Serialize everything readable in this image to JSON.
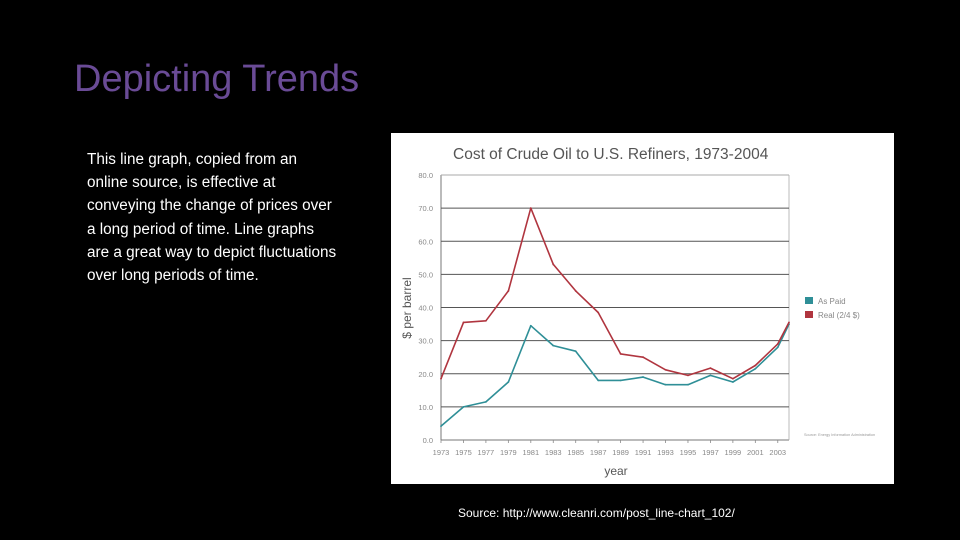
{
  "slide": {
    "title": "Depicting Trends",
    "body": "This line graph, copied from an online source, is effective at conveying the change of prices over a long period of time. Line graphs are a great way to depict fluctuations over long periods of time.",
    "source": "Source: http://www.cleanri.com/post_line-chart_102/",
    "colors": {
      "title": "#6a4b96",
      "background": "#000000",
      "text": "#ffffff"
    }
  },
  "chart_data": {
    "type": "line",
    "title": "Cost of Crude Oil to U.S. Refiners, 1973-2004",
    "xlabel": "year",
    "ylabel": "$ per barrel",
    "ylim": [
      0,
      80
    ],
    "y_ticks": [
      "0.0",
      "10.0",
      "20.0",
      "30.0",
      "40.0",
      "50.0",
      "60.0",
      "70.0",
      "80.0"
    ],
    "x": [
      1973,
      1975,
      1977,
      1979,
      1981,
      1983,
      1985,
      1987,
      1989,
      1991,
      1993,
      1995,
      1997,
      1999,
      2001,
      2003,
      2004
    ],
    "x_tick_labels": [
      "1973",
      "1975",
      "1977",
      "1979",
      "1981",
      "1983",
      "1985",
      "1987",
      "1989",
      "1991",
      "1993",
      "1995",
      "1997",
      "1999",
      "2001",
      "2003"
    ],
    "series": [
      {
        "name": "As Paid",
        "color": "#2f8f97",
        "values": [
          4.2,
          10,
          11.5,
          17.5,
          34.5,
          28.5,
          26.8,
          18,
          18,
          19,
          16.7,
          16.7,
          19.5,
          17.5,
          21.5,
          28,
          35
        ]
      },
      {
        "name": "Real (2/4 $)",
        "color": "#b0353f",
        "values": [
          18.5,
          35.5,
          36,
          45,
          70,
          53,
          45,
          38.5,
          26,
          25,
          21.2,
          19.5,
          21.7,
          18.5,
          22.5,
          29,
          35.5
        ]
      }
    ],
    "grid": true,
    "legend": "right",
    "note": "Source: Energy Information Administration"
  }
}
